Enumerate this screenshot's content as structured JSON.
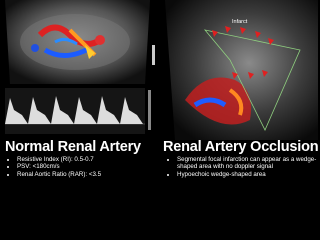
{
  "left": {
    "title": "Normal Renal Artery",
    "bullets": [
      "Resistive Index (RI): 0.5-0.7",
      "PSV: <180cm/s",
      "Renal Aortic Ratio (RAR): <3.5"
    ]
  },
  "right": {
    "title": "Renal Artery Occlusion",
    "image_label": "Infarct",
    "bullets": [
      "Segmental focal infarction can appear as a wedge-shaped area with no doppler signal",
      "Hypoechoic wedge-shaped area"
    ]
  }
}
